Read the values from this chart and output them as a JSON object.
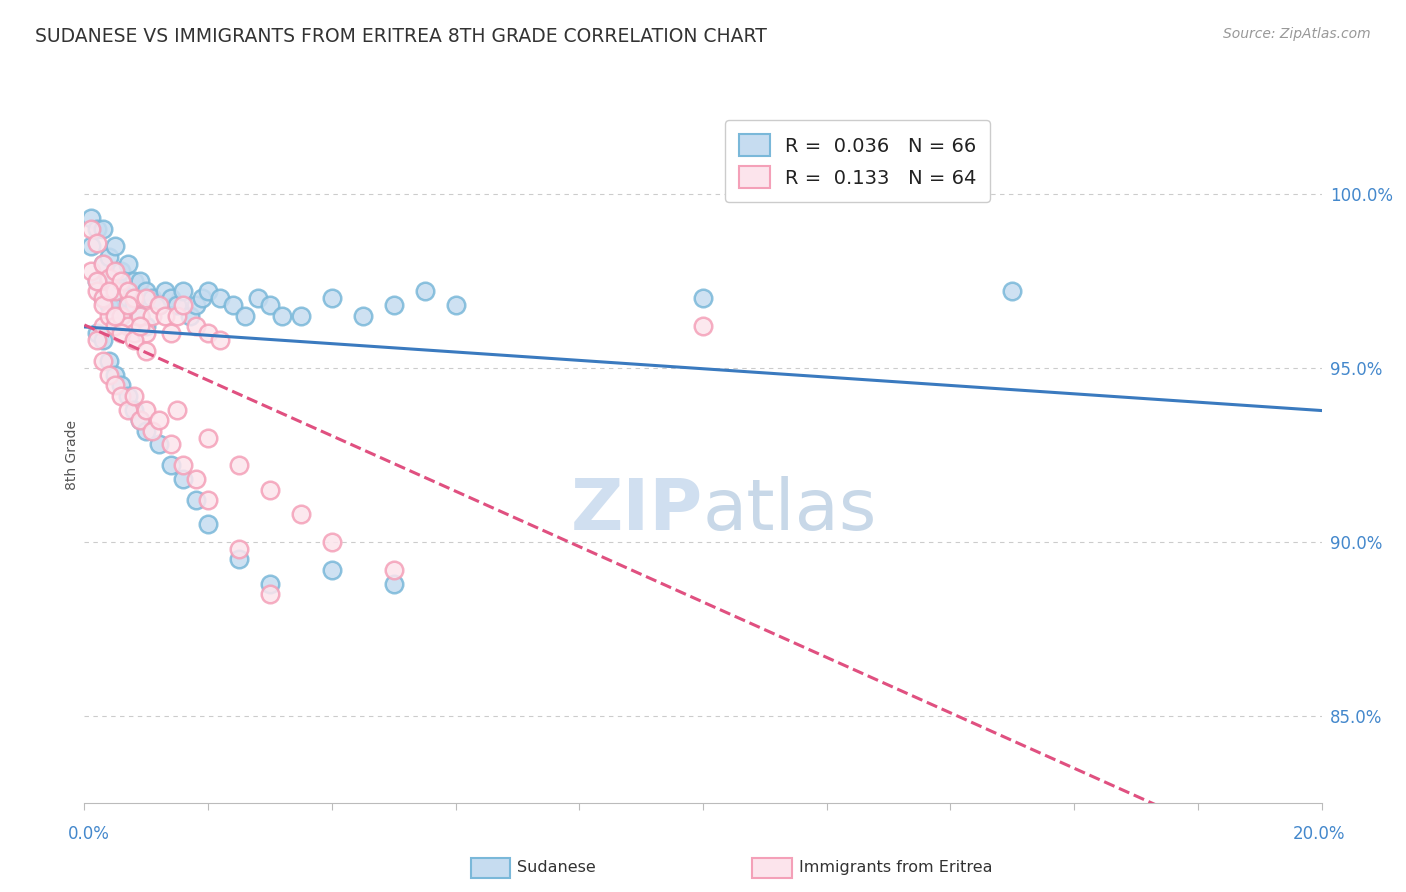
{
  "title": "SUDANESE VS IMMIGRANTS FROM ERITREA 8TH GRADE CORRELATION CHART",
  "source": "Source: ZipAtlas.com",
  "ylabel": "8th Grade",
  "ylabel_right_ticks": [
    "85.0%",
    "90.0%",
    "95.0%",
    "100.0%"
  ],
  "ylabel_right_vals": [
    0.85,
    0.9,
    0.95,
    1.0
  ],
  "xlim": [
    0.0,
    0.2
  ],
  "ylim": [
    0.825,
    1.025
  ],
  "legend_label1": "Sudanese",
  "legend_label2": "Immigrants from Eritrea",
  "R1": 0.036,
  "N1": 66,
  "R2": 0.133,
  "N2": 64,
  "color_blue": "#7ab8d9",
  "color_pink": "#f4a0b8",
  "color_blue_fill": "#c6dcf0",
  "color_pink_fill": "#fce4ec",
  "grid_color": "#cccccc",
  "trend_color_blue": "#3a7abf",
  "trend_color_pink": "#e05080",
  "blue_x": [
    0.001,
    0.001,
    0.002,
    0.002,
    0.003,
    0.003,
    0.003,
    0.004,
    0.004,
    0.004,
    0.005,
    0.005,
    0.005,
    0.006,
    0.006,
    0.006,
    0.007,
    0.007,
    0.008,
    0.008,
    0.009,
    0.009,
    0.01,
    0.01,
    0.011,
    0.012,
    0.013,
    0.014,
    0.015,
    0.016,
    0.017,
    0.018,
    0.019,
    0.02,
    0.022,
    0.024,
    0.026,
    0.028,
    0.03,
    0.032,
    0.035,
    0.04,
    0.045,
    0.05,
    0.055,
    0.06,
    0.002,
    0.003,
    0.004,
    0.005,
    0.006,
    0.007,
    0.008,
    0.009,
    0.01,
    0.012,
    0.014,
    0.016,
    0.018,
    0.02,
    0.025,
    0.03,
    0.04,
    0.05,
    0.1,
    0.15
  ],
  "blue_y": [
    0.993,
    0.985,
    0.99,
    0.975,
    0.99,
    0.98,
    0.97,
    0.982,
    0.975,
    0.968,
    0.985,
    0.975,
    0.968,
    0.978,
    0.972,
    0.965,
    0.98,
    0.97,
    0.975,
    0.968,
    0.975,
    0.965,
    0.972,
    0.962,
    0.97,
    0.968,
    0.972,
    0.97,
    0.968,
    0.972,
    0.965,
    0.968,
    0.97,
    0.972,
    0.97,
    0.968,
    0.965,
    0.97,
    0.968,
    0.965,
    0.965,
    0.97,
    0.965,
    0.968,
    0.972,
    0.968,
    0.96,
    0.958,
    0.952,
    0.948,
    0.945,
    0.942,
    0.938,
    0.935,
    0.932,
    0.928,
    0.922,
    0.918,
    0.912,
    0.905,
    0.895,
    0.888,
    0.892,
    0.888,
    0.97,
    0.972
  ],
  "pink_x": [
    0.001,
    0.001,
    0.002,
    0.002,
    0.003,
    0.003,
    0.003,
    0.004,
    0.004,
    0.005,
    0.005,
    0.005,
    0.006,
    0.006,
    0.007,
    0.007,
    0.008,
    0.008,
    0.009,
    0.01,
    0.01,
    0.011,
    0.012,
    0.013,
    0.014,
    0.015,
    0.016,
    0.018,
    0.02,
    0.022,
    0.002,
    0.003,
    0.004,
    0.005,
    0.006,
    0.007,
    0.008,
    0.009,
    0.01,
    0.011,
    0.012,
    0.014,
    0.016,
    0.018,
    0.02,
    0.025,
    0.03,
    0.002,
    0.003,
    0.004,
    0.005,
    0.006,
    0.007,
    0.008,
    0.009,
    0.01,
    0.015,
    0.02,
    0.025,
    0.03,
    0.035,
    0.04,
    0.05,
    0.1
  ],
  "pink_y": [
    0.99,
    0.978,
    0.986,
    0.972,
    0.98,
    0.97,
    0.962,
    0.976,
    0.965,
    0.978,
    0.972,
    0.962,
    0.975,
    0.965,
    0.972,
    0.962,
    0.97,
    0.96,
    0.965,
    0.97,
    0.96,
    0.965,
    0.968,
    0.965,
    0.96,
    0.965,
    0.968,
    0.962,
    0.96,
    0.958,
    0.958,
    0.952,
    0.948,
    0.945,
    0.942,
    0.938,
    0.942,
    0.935,
    0.938,
    0.932,
    0.935,
    0.928,
    0.922,
    0.918,
    0.912,
    0.898,
    0.885,
    0.975,
    0.968,
    0.972,
    0.965,
    0.96,
    0.968,
    0.958,
    0.962,
    0.955,
    0.938,
    0.93,
    0.922,
    0.915,
    0.908,
    0.9,
    0.892,
    0.962
  ]
}
